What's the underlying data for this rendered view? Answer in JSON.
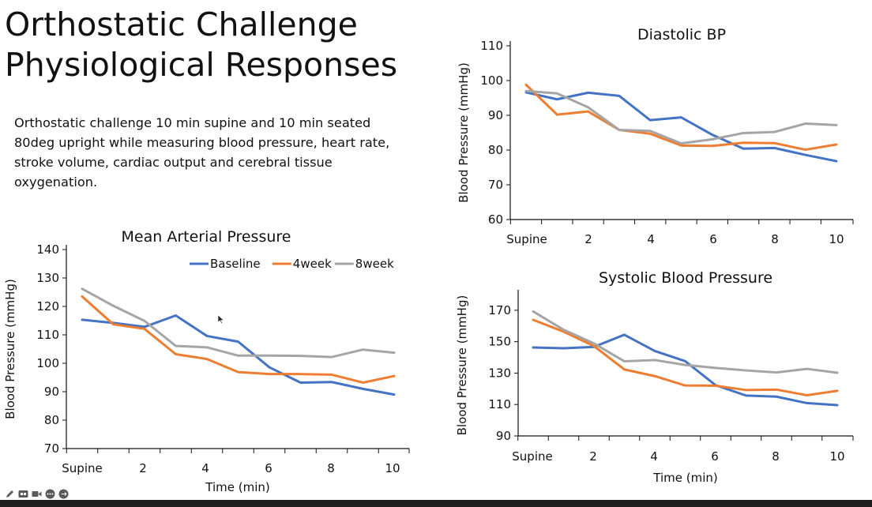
{
  "slide": {
    "title_lines": [
      "Orthostatic Challenge",
      "Physiological Responses"
    ],
    "description_lines": [
      "Orthostatic challenge 10 min supine and 10 min seated",
      "80deg upright while measuring blood pressure, heart rate,",
      "stroke volume, cardiac output and cerebral tissue",
      "oxygenation."
    ]
  },
  "colors": {
    "baseline": "#4472C4",
    "week4": "#ED7D31",
    "week8": "#A5A5A5",
    "axis": "#D9D9D9",
    "text": "#111111"
  },
  "toolbar_icons": [
    "pen-icon",
    "cc-icon",
    "video-icon",
    "more-icon",
    "next-icon"
  ],
  "chart_data": [
    {
      "id": "map",
      "type": "line",
      "title": "Mean Arterial Pressure",
      "xlabel": "Time (min)",
      "ylabel": "Blood Pressure (mmHg)",
      "ylim": [
        70,
        140
      ],
      "yticks": [
        70,
        80,
        90,
        100,
        110,
        120,
        130,
        140
      ],
      "xtick_labels": [
        "Supine",
        "2",
        "4",
        "6",
        "8",
        "10"
      ],
      "x": [
        0,
        1,
        2,
        3,
        4,
        5,
        6,
        7,
        8,
        9,
        10
      ],
      "legend": "top-right",
      "series": [
        {
          "name": "Baseline",
          "color": "#4472C4",
          "values": [
            115.3,
            114.2,
            112.8,
            116.8,
            109.6,
            107.6,
            98.6,
            93.2,
            93.4,
            91.0,
            89.0
          ]
        },
        {
          "name": "4week",
          "color": "#ED7D31",
          "values": [
            123.5,
            113.7,
            112.1,
            103.2,
            101.5,
            96.9,
            96.2,
            96.2,
            96.0,
            93.2,
            95.5
          ]
        },
        {
          "name": "8week",
          "color": "#A5A5A5",
          "values": [
            126.2,
            120.2,
            114.9,
            106.1,
            105.6,
            102.7,
            102.7,
            102.6,
            102.2,
            104.8,
            103.7
          ]
        }
      ]
    },
    {
      "id": "dbp",
      "type": "line",
      "title": "Diastolic BP",
      "xlabel": "",
      "ylabel": "Blood Pressure (mmHg)",
      "ylim": [
        60,
        110
      ],
      "yticks": [
        60,
        70,
        80,
        90,
        100,
        110
      ],
      "xtick_labels": [
        "Supine",
        "2",
        "4",
        "6",
        "8",
        "10"
      ],
      "x": [
        0,
        1,
        2,
        3,
        4,
        5,
        6,
        7,
        8,
        9,
        10
      ],
      "series": [
        {
          "color": "#4472C4",
          "values": [
            96.6,
            94.6,
            96.5,
            95.6,
            88.6,
            89.4,
            84.4,
            80.4,
            80.6,
            78.6,
            76.8
          ]
        },
        {
          "color": "#ED7D31",
          "values": [
            98.8,
            90.2,
            91.1,
            85.8,
            84.7,
            81.3,
            81.2,
            82.1,
            82.0,
            80.1,
            81.6
          ]
        },
        {
          "color": "#A5A5A5",
          "values": [
            97.0,
            96.3,
            92.3,
            85.8,
            85.5,
            81.9,
            83.1,
            84.9,
            85.2,
            87.6,
            87.2
          ]
        }
      ]
    },
    {
      "id": "sbp",
      "type": "line",
      "title": "Systolic Blood Pressure",
      "xlabel": "Time (min)",
      "ylabel": "Blood Pressure (mmHg)",
      "ylim": [
        90,
        180
      ],
      "yticks": [
        90,
        110,
        130,
        150,
        170
      ],
      "xtick_labels": [
        "Supine",
        "2",
        "4",
        "6",
        "8",
        "10"
      ],
      "x": [
        0,
        1,
        2,
        3,
        4,
        5,
        6,
        7,
        8,
        9,
        10
      ],
      "series": [
        {
          "color": "#4472C4",
          "values": [
            146.3,
            145.8,
            146.7,
            154.4,
            144.1,
            137.6,
            122.3,
            115.7,
            115.0,
            110.9,
            109.6
          ]
        },
        {
          "color": "#ED7D31",
          "values": [
            163.9,
            156.4,
            147.2,
            132.3,
            128.1,
            122.1,
            122.0,
            119.2,
            119.5,
            115.9,
            118.7
          ]
        },
        {
          "color": "#A5A5A5",
          "values": [
            169.3,
            157.6,
            148.9,
            137.5,
            138.3,
            135.2,
            133.3,
            131.7,
            130.4,
            132.7,
            130.2
          ]
        }
      ]
    }
  ]
}
